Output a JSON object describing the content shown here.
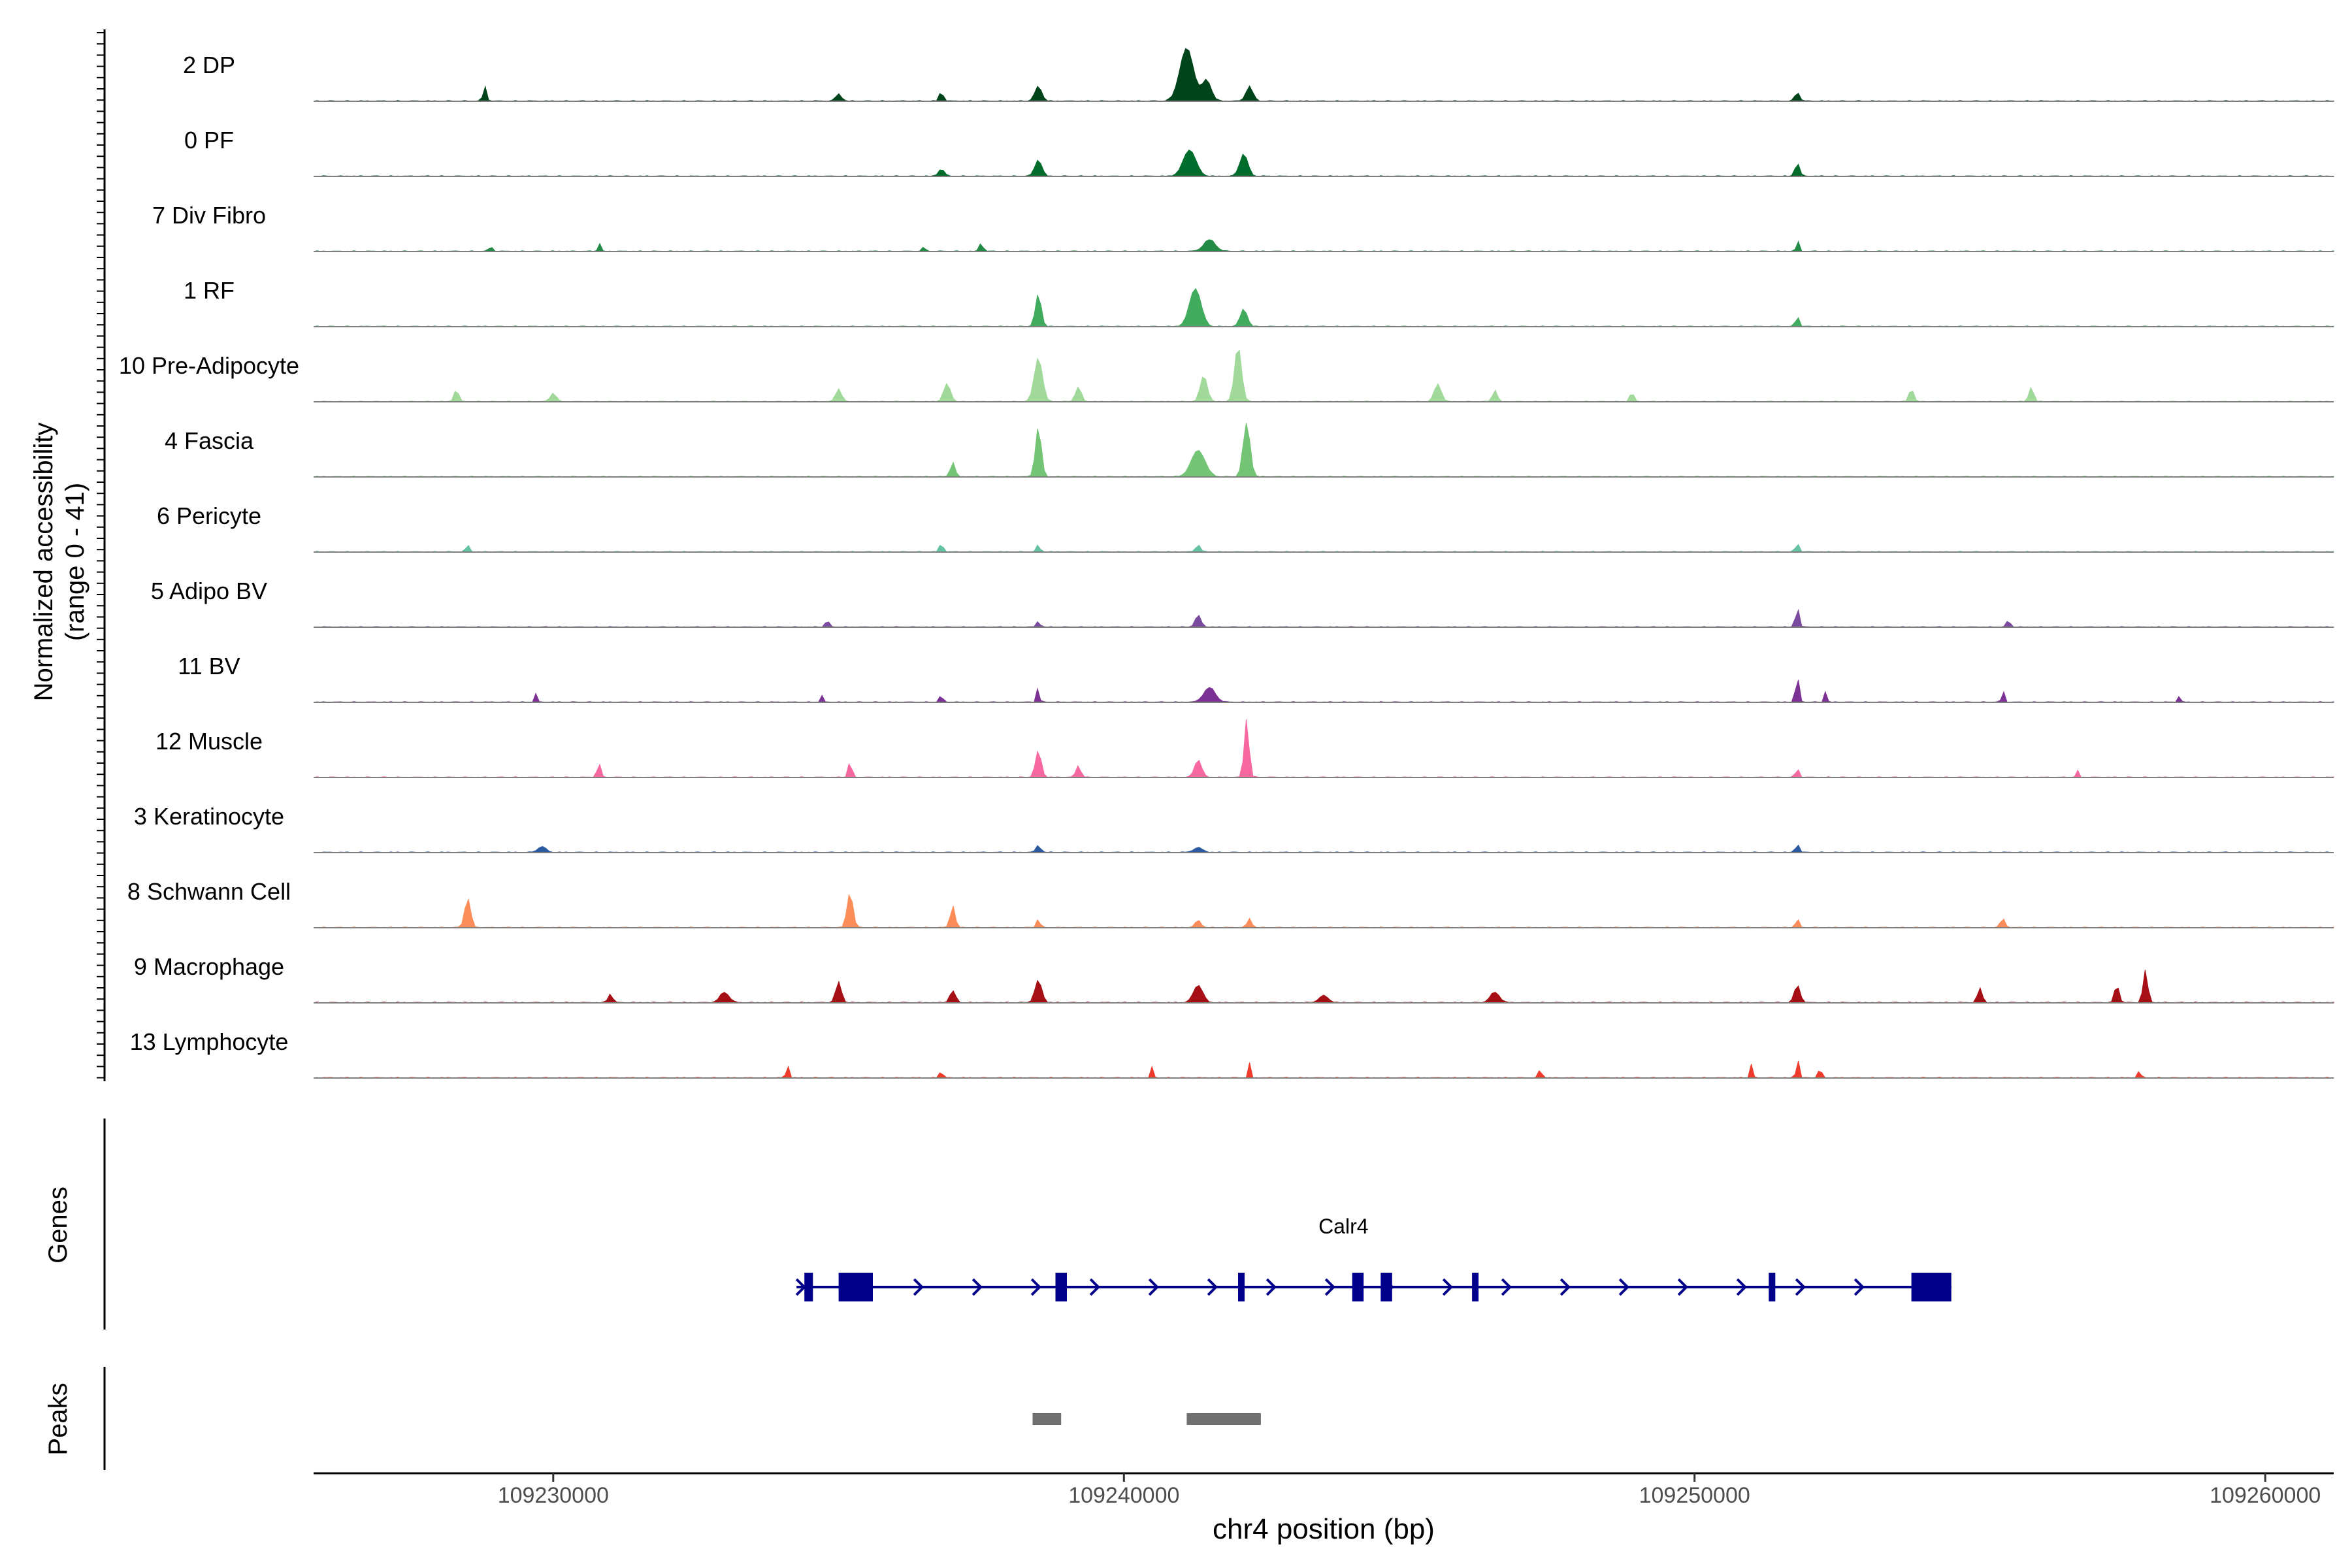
{
  "chart_data": {
    "type": "area",
    "ylabel": "Normalized accessibility\n(range 0 - 41)",
    "xlabel": "chr4 position (bp)",
    "xlim": [
      109225800,
      109261200
    ],
    "xticks": [
      109230000,
      109240000,
      109250000,
      109260000
    ],
    "xtick_labels": [
      "109230000",
      "109240000",
      "109250000",
      "109260000"
    ],
    "ylim": [
      0,
      41
    ],
    "tracks": [
      {
        "name": "2 DP",
        "color": "#00441b",
        "peaks": [
          [
            109228800,
            0.25,
            0.03
          ],
          [
            109235000,
            0.12,
            0.05
          ],
          [
            109236800,
            0.18,
            0.03
          ],
          [
            109238500,
            0.25,
            0.06
          ],
          [
            109241100,
            0.9,
            0.12
          ],
          [
            109241450,
            0.35,
            0.08
          ],
          [
            109242200,
            0.25,
            0.06
          ],
          [
            109251800,
            0.15,
            0.04
          ]
        ]
      },
      {
        "name": "0 PF",
        "color": "#006d2c",
        "peaks": [
          [
            109236800,
            0.12,
            0.05
          ],
          [
            109238500,
            0.28,
            0.06
          ],
          [
            109241150,
            0.45,
            0.11
          ],
          [
            109242100,
            0.38,
            0.07
          ],
          [
            109251800,
            0.22,
            0.04
          ]
        ]
      },
      {
        "name": "7 Div Fibro",
        "color": "#238b45",
        "peaks": [
          [
            109228900,
            0.15,
            0.02
          ],
          [
            109230800,
            0.18,
            0.02
          ],
          [
            109236500,
            0.12,
            0.02
          ],
          [
            109237500,
            0.15,
            0.03
          ],
          [
            109241500,
            0.2,
            0.1
          ],
          [
            109251800,
            0.25,
            0.02
          ]
        ]
      },
      {
        "name": "1 RF",
        "color": "#41ab5d",
        "peaks": [
          [
            109238500,
            0.55,
            0.05
          ],
          [
            109241250,
            0.65,
            0.1
          ],
          [
            109242100,
            0.3,
            0.06
          ],
          [
            109251800,
            0.18,
            0.03
          ]
        ]
      },
      {
        "name": "10 Pre-Adipocyte",
        "color": "#a1d99b",
        "peaks": [
          [
            109228300,
            0.2,
            0.04
          ],
          [
            109230000,
            0.15,
            0.05
          ],
          [
            109235000,
            0.22,
            0.05
          ],
          [
            109236900,
            0.3,
            0.06
          ],
          [
            109238500,
            0.75,
            0.07
          ],
          [
            109239200,
            0.25,
            0.05
          ],
          [
            109242000,
            0.95,
            0.06
          ],
          [
            109241400,
            0.45,
            0.06
          ],
          [
            109245500,
            0.3,
            0.06
          ],
          [
            109246500,
            0.2,
            0.04
          ],
          [
            109248900,
            0.18,
            0.03
          ],
          [
            109253800,
            0.22,
            0.04
          ],
          [
            109255900,
            0.25,
            0.04
          ]
        ]
      },
      {
        "name": "4 Fascia",
        "color": "#74c476",
        "peaks": [
          [
            109237000,
            0.25,
            0.04
          ],
          [
            109238500,
            0.85,
            0.05
          ],
          [
            109241300,
            0.45,
            0.12
          ],
          [
            109242150,
            0.92,
            0.06
          ]
        ]
      },
      {
        "name": "6 Pericyte",
        "color": "#66c2a4",
        "peaks": [
          [
            109228500,
            0.12,
            0.03
          ],
          [
            109236800,
            0.15,
            0.03
          ],
          [
            109238500,
            0.12,
            0.03
          ],
          [
            109241300,
            0.12,
            0.04
          ],
          [
            109251800,
            0.15,
            0.03
          ]
        ]
      },
      {
        "name": "5 Adipo BV",
        "color": "#7b4ba0",
        "peaks": [
          [
            109234800,
            0.12,
            0.03
          ],
          [
            109238500,
            0.1,
            0.03
          ],
          [
            109241300,
            0.2,
            0.05
          ],
          [
            109251800,
            0.35,
            0.03
          ],
          [
            109255500,
            0.12,
            0.03
          ]
        ]
      },
      {
        "name": "11 BV",
        "color": "#7b3294",
        "peaks": [
          [
            109229700,
            0.15,
            0.02
          ],
          [
            109234700,
            0.12,
            0.02
          ],
          [
            109236800,
            0.2,
            0.02
          ],
          [
            109238500,
            0.3,
            0.02
          ],
          [
            109241500,
            0.25,
            0.1
          ],
          [
            109251800,
            0.45,
            0.03
          ],
          [
            109252300,
            0.2,
            0.02
          ],
          [
            109255400,
            0.25,
            0.02
          ],
          [
            109258500,
            0.12,
            0.02
          ]
        ]
      },
      {
        "name": "12 Muscle",
        "color": "#f768a1",
        "peaks": [
          [
            109230800,
            0.25,
            0.03
          ],
          [
            109235200,
            0.28,
            0.03
          ],
          [
            109238500,
            0.45,
            0.05
          ],
          [
            109239200,
            0.2,
            0.04
          ],
          [
            109241300,
            0.3,
            0.06
          ],
          [
            109242150,
            1.0,
            0.04
          ],
          [
            109251800,
            0.15,
            0.03
          ],
          [
            109256700,
            0.15,
            0.02
          ]
        ]
      },
      {
        "name": "3 Keratinocyte",
        "color": "#2c5aa0",
        "peaks": [
          [
            109229800,
            0.1,
            0.07
          ],
          [
            109238500,
            0.12,
            0.04
          ],
          [
            109241300,
            0.08,
            0.08
          ],
          [
            109251800,
            0.15,
            0.03
          ]
        ]
      },
      {
        "name": "8 Schwann Cell",
        "color": "#fc8d59",
        "peaks": [
          [
            109228500,
            0.5,
            0.05
          ],
          [
            109235200,
            0.6,
            0.05
          ],
          [
            109237000,
            0.38,
            0.04
          ],
          [
            109238500,
            0.15,
            0.03
          ],
          [
            109241300,
            0.12,
            0.05
          ],
          [
            109242200,
            0.15,
            0.04
          ],
          [
            109251800,
            0.15,
            0.03
          ],
          [
            109255400,
            0.15,
            0.04
          ]
        ]
      },
      {
        "name": "9 Macrophage",
        "color": "#a50f15",
        "peaks": [
          [
            109231000,
            0.15,
            0.04
          ],
          [
            109233000,
            0.18,
            0.08
          ],
          [
            109235000,
            0.35,
            0.05
          ],
          [
            109237000,
            0.2,
            0.05
          ],
          [
            109238500,
            0.38,
            0.06
          ],
          [
            109241300,
            0.3,
            0.08
          ],
          [
            109243500,
            0.12,
            0.08
          ],
          [
            109246500,
            0.18,
            0.08
          ],
          [
            109251800,
            0.3,
            0.05
          ],
          [
            109255000,
            0.25,
            0.04
          ],
          [
            109257400,
            0.3,
            0.04
          ],
          [
            109257900,
            0.55,
            0.04
          ]
        ]
      },
      {
        "name": "13 Lymphocyte",
        "color": "#ef3b2c",
        "peaks": [
          [
            109234100,
            0.3,
            0.02
          ],
          [
            109236800,
            0.2,
            0.02
          ],
          [
            109240500,
            0.2,
            0.02
          ],
          [
            109242200,
            0.25,
            0.02
          ],
          [
            109247300,
            0.25,
            0.02
          ],
          [
            109251000,
            0.25,
            0.02
          ],
          [
            109251800,
            0.45,
            0.02
          ],
          [
            109252200,
            0.28,
            0.02
          ],
          [
            109257800,
            0.18,
            0.02
          ]
        ]
      }
    ],
    "genes": [
      {
        "name": "Calr4",
        "start": 109234400,
        "end": 109254500,
        "strand": "+",
        "exons": [
          [
            109234400,
            109234550
          ],
          [
            109235000,
            109235600
          ],
          [
            109238800,
            109239000
          ],
          [
            109242000,
            109242100
          ],
          [
            109244000,
            109244200
          ],
          [
            109244500,
            109244700
          ],
          [
            109246100,
            109246200
          ],
          [
            109251300,
            109251400
          ],
          [
            109253800,
            109254500
          ]
        ]
      }
    ],
    "peaks": [
      [
        109238400,
        109238900
      ],
      [
        109241100,
        109242400
      ]
    ],
    "panels": {
      "genes_label": "Genes",
      "peaks_label": "Peaks"
    }
  }
}
